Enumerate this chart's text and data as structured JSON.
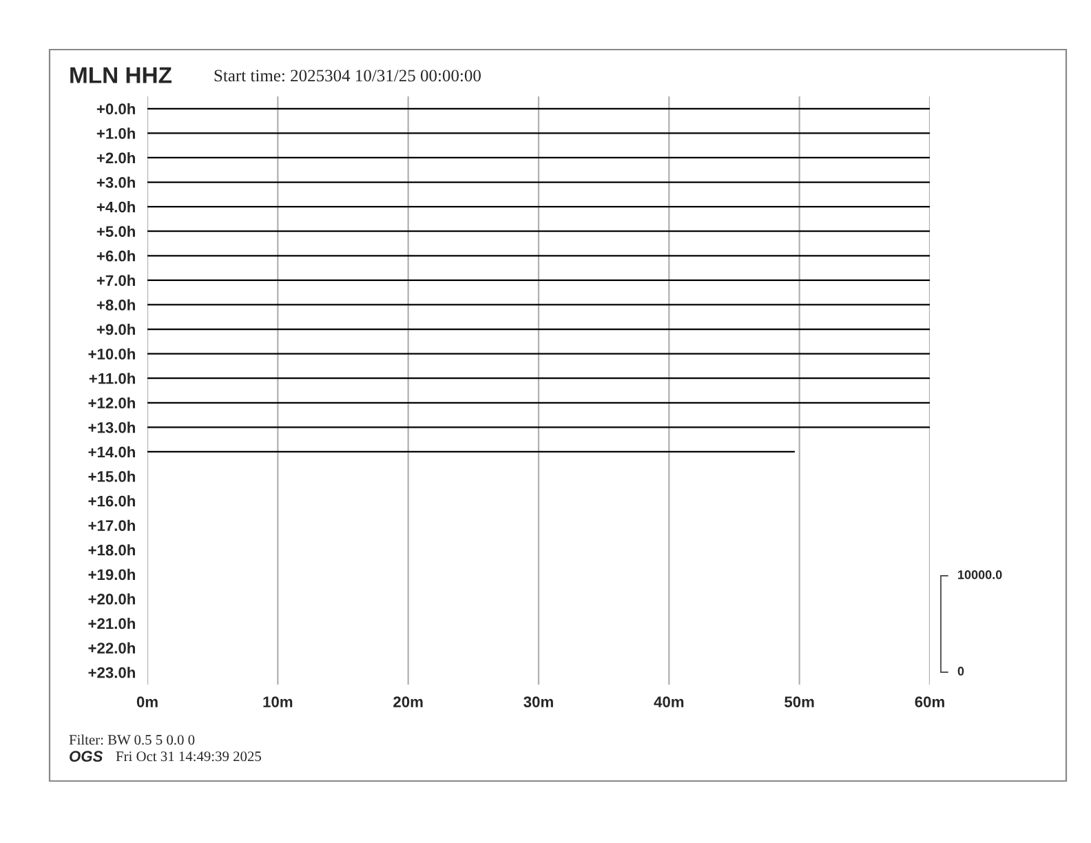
{
  "chart_data": {
    "type": "line",
    "title": "MLN HHZ",
    "subtitle": "Start time: 2025304 10/31/25 00:00:00",
    "xlim": [
      0,
      60
    ],
    "xticks": [
      {
        "value": 0,
        "label": "0m"
      },
      {
        "value": 10,
        "label": "10m"
      },
      {
        "value": 20,
        "label": "20m"
      },
      {
        "value": 30,
        "label": "30m"
      },
      {
        "value": 40,
        "label": "40m"
      },
      {
        "value": 50,
        "label": "50m"
      },
      {
        "value": 60,
        "label": "60m"
      }
    ],
    "ylim": [
      23.5,
      -0.5
    ],
    "yticks": [
      {
        "value": 0,
        "label": "+0.0h"
      },
      {
        "value": 1,
        "label": "+1.0h"
      },
      {
        "value": 2,
        "label": "+2.0h"
      },
      {
        "value": 3,
        "label": "+3.0h"
      },
      {
        "value": 4,
        "label": "+4.0h"
      },
      {
        "value": 5,
        "label": "+5.0h"
      },
      {
        "value": 6,
        "label": "+6.0h"
      },
      {
        "value": 7,
        "label": "+7.0h"
      },
      {
        "value": 8,
        "label": "+8.0h"
      },
      {
        "value": 9,
        "label": "+9.0h"
      },
      {
        "value": 10,
        "label": "+10.0h"
      },
      {
        "value": 11,
        "label": "+11.0h"
      },
      {
        "value": 12,
        "label": "+12.0h"
      },
      {
        "value": 13,
        "label": "+13.0h"
      },
      {
        "value": 14,
        "label": "+14.0h"
      },
      {
        "value": 15,
        "label": "+15.0h"
      },
      {
        "value": 16,
        "label": "+16.0h"
      },
      {
        "value": 17,
        "label": "+17.0h"
      },
      {
        "value": 18,
        "label": "+18.0h"
      },
      {
        "value": 19,
        "label": "+19.0h"
      },
      {
        "value": 20,
        "label": "+20.0h"
      },
      {
        "value": 21,
        "label": "+21.0h"
      },
      {
        "value": 22,
        "label": "+22.0h"
      },
      {
        "value": 23,
        "label": "+23.0h"
      }
    ],
    "grid": "x",
    "line_style": "solid",
    "series": [
      {
        "color": "#000000",
        "x": [
          0,
          60
        ],
        "values": [
          0,
          0
        ]
      },
      {
        "color": "#000000",
        "x": [
          0,
          60
        ],
        "values": [
          1,
          1
        ]
      },
      {
        "color": "#000000",
        "x": [
          0,
          60
        ],
        "values": [
          2,
          2
        ]
      },
      {
        "color": "#000000",
        "x": [
          0,
          60
        ],
        "values": [
          3,
          3
        ]
      },
      {
        "color": "#000000",
        "x": [
          0,
          60
        ],
        "values": [
          4,
          4
        ]
      },
      {
        "color": "#000000",
        "x": [
          0,
          60
        ],
        "values": [
          5,
          5
        ]
      },
      {
        "color": "#000000",
        "x": [
          0,
          60
        ],
        "values": [
          6,
          6
        ]
      },
      {
        "color": "#000000",
        "x": [
          0,
          60
        ],
        "values": [
          7,
          7
        ]
      },
      {
        "color": "#000000",
        "x": [
          0,
          60
        ],
        "values": [
          8,
          8
        ]
      },
      {
        "color": "#000000",
        "x": [
          0,
          60
        ],
        "values": [
          9,
          9
        ]
      },
      {
        "color": "#000000",
        "x": [
          0,
          60
        ],
        "values": [
          10,
          10
        ]
      },
      {
        "color": "#000000",
        "x": [
          0,
          60
        ],
        "values": [
          11,
          11
        ]
      },
      {
        "color": "#000000",
        "x": [
          0,
          60
        ],
        "values": [
          12,
          12
        ]
      },
      {
        "color": "#000000",
        "x": [
          0,
          60
        ],
        "values": [
          13,
          13
        ]
      },
      {
        "color": "#000000",
        "x": [
          0,
          49.6
        ],
        "values": [
          14,
          14
        ]
      }
    ],
    "annotations": [
      "10000.0",
      "0",
      "Filter: BW 0.5 5 0.0 0",
      "OGS",
      "Fri Oct 31 14:49:39 2025"
    ]
  }
}
